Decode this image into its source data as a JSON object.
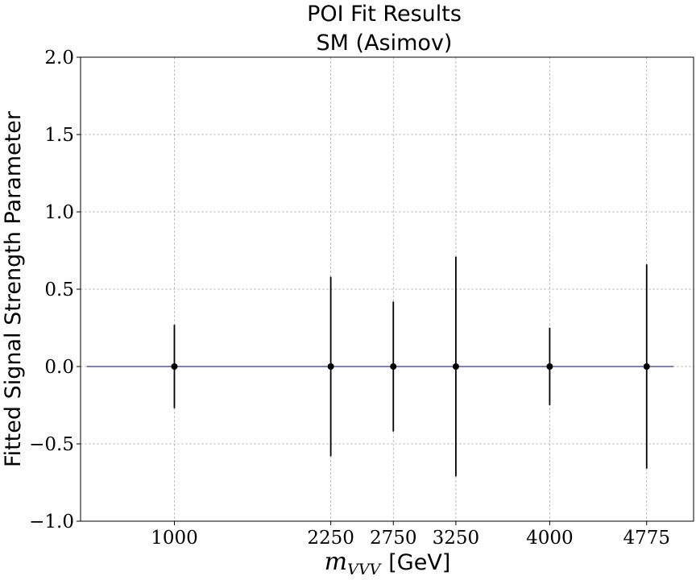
{
  "chart_data": {
    "type": "scatter",
    "title": "POI Fit Results",
    "subtitle": "SM (Asimov)",
    "xlabel_math": "m",
    "xlabel_sub": "VVV",
    "xlabel_unit": "[GeV]",
    "ylabel": "Fitted Signal Strength Parameter",
    "xlim": [
      250,
      5150
    ],
    "ylim": [
      -1.0,
      2.0
    ],
    "reference_line": {
      "y": 0.0,
      "x_start": 300,
      "x_end": 4990,
      "color": "#000080"
    },
    "grid": true,
    "xticks": [
      1000,
      2250,
      2750,
      3250,
      4000,
      4775
    ],
    "xtick_labels": [
      "1000",
      "2250",
      "2750",
      "3250",
      "4000",
      "4775"
    ],
    "yticks": [
      -1.0,
      -0.5,
      0.0,
      0.5,
      1.0,
      1.5,
      2.0
    ],
    "ytick_labels": [
      "−1.0",
      "−0.5",
      "0.0",
      "0.5",
      "1.0",
      "1.5",
      "2.0"
    ],
    "points": [
      {
        "x": 1000,
        "y": 0.0,
        "err": 0.27
      },
      {
        "x": 2250,
        "y": 0.0,
        "err": 0.58
      },
      {
        "x": 2750,
        "y": 0.0,
        "err": 0.42
      },
      {
        "x": 3250,
        "y": 0.0,
        "err": 0.71
      },
      {
        "x": 4000,
        "y": 0.0,
        "err": 0.25
      },
      {
        "x": 4775,
        "y": 0.0,
        "err": 0.66
      }
    ]
  }
}
